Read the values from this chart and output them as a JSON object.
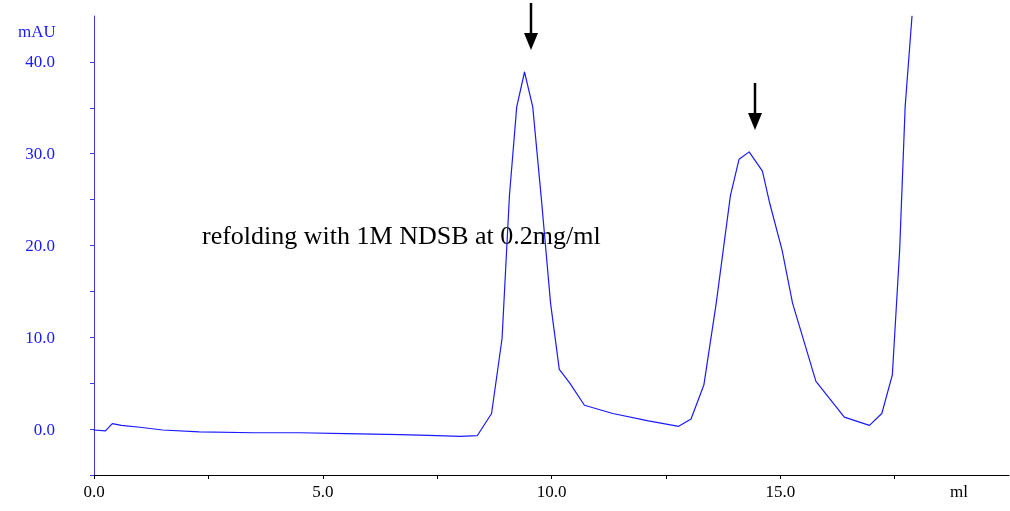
{
  "chart_data": {
    "type": "line",
    "xlabel": "ml",
    "ylabel": "mAU",
    "annotations": [
      "refolding with 1M NDSB at 0.2mg/ml"
    ],
    "xlim": [
      0,
      20
    ],
    "ylim": [
      -5,
      45
    ],
    "xticks": [
      {
        "value": 0,
        "label": "0.0"
      },
      {
        "value": 2.5,
        "label": null
      },
      {
        "value": 5,
        "label": "5.0"
      },
      {
        "value": 7.5,
        "label": null
      },
      {
        "value": 10,
        "label": "10.0"
      },
      {
        "value": 12.5,
        "label": null
      },
      {
        "value": 15,
        "label": "15.0"
      },
      {
        "value": 17.5,
        "label": null
      }
    ],
    "yticks": [
      {
        "value": -5,
        "label": null
      },
      {
        "value": 0,
        "label": "0.0"
      },
      {
        "value": 5,
        "label": null
      },
      {
        "value": 10,
        "label": "10.0"
      },
      {
        "value": 15,
        "label": null
      },
      {
        "value": 20,
        "label": "20.0"
      },
      {
        "value": 25,
        "label": null
      },
      {
        "value": 30,
        "label": "30.0"
      },
      {
        "value": 35,
        "label": null
      },
      {
        "value": 40,
        "label": "40.0"
      }
    ],
    "grid": false,
    "marker": "none",
    "line_style": "solid",
    "series": [
      {
        "color": "#1a1aff",
        "x": [
          0,
          0.25,
          0.4,
          0.6,
          1.0,
          1.5,
          2.3,
          3.5,
          4.5,
          5.5,
          6.7,
          7.5,
          8.0,
          8.38,
          8.69,
          8.92,
          9.08,
          9.24,
          9.41,
          9.59,
          9.78,
          9.98,
          10.17,
          10.4,
          10.72,
          11.34,
          12.12,
          12.78,
          13.05,
          13.33,
          13.6,
          13.91,
          14.1,
          14.32,
          14.61,
          14.77,
          15.04,
          15.27,
          15.78,
          16.4,
          16.95,
          17.22,
          17.45,
          17.61,
          17.73,
          17.88
        ],
        "values": [
          -0.1,
          -0.2,
          0.6,
          0.4,
          0.2,
          -0.1,
          -0.3,
          -0.4,
          -0.4,
          -0.5,
          -0.6,
          -0.7,
          -0.8,
          -0.7,
          1.7,
          9.9,
          25.4,
          35.1,
          38.9,
          35.1,
          25.0,
          13.7,
          6.5,
          5.0,
          2.6,
          1.7,
          0.9,
          0.3,
          1.1,
          4.8,
          13.7,
          25.4,
          29.4,
          30.2,
          28.1,
          24.6,
          19.5,
          13.7,
          5.2,
          1.3,
          0.4,
          1.7,
          5.9,
          19.5,
          35.1,
          45
        ]
      }
    ]
  }
}
